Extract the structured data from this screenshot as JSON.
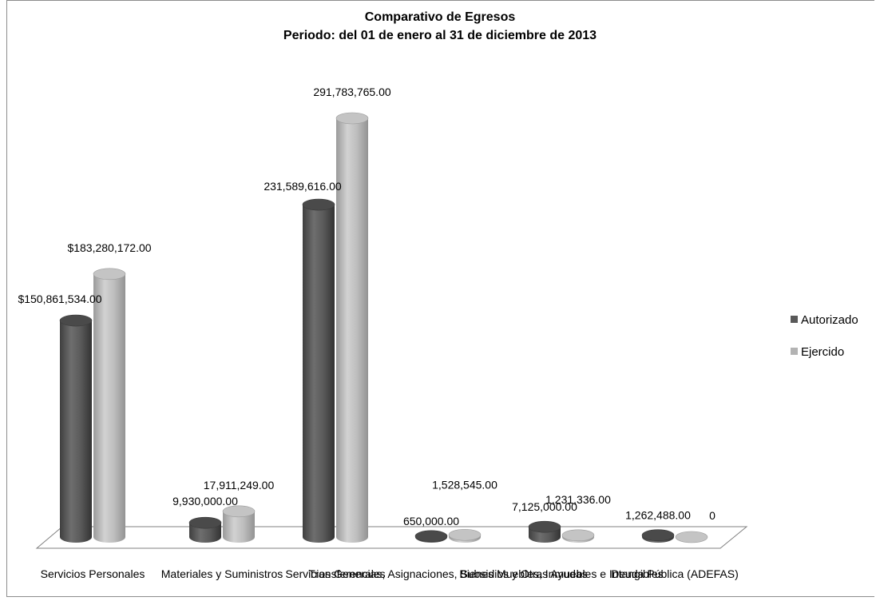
{
  "chart_data": {
    "type": "bar",
    "title": "Comparativo de Egresos",
    "subtitle": "Periodo: del 01 de enero al 31 de diciembre de 2013",
    "categories": [
      "Servicios Personales",
      "Materiales y Suministros",
      "Servicios Generales",
      "Transferencias, Asignaciones, Subsidios y Otras Ayudas",
      "Bienes Muebles, Inmuebles e Intangibles",
      "Deuda Pública (ADEFAS)"
    ],
    "series": [
      {
        "name": "Autorizado",
        "color": "#595959",
        "values": [
          150861534,
          9930000,
          231589616,
          650000,
          7125000,
          1262488
        ],
        "labels": [
          "$150,861,534.00",
          "9,930,000.00",
          "231,589,616.00",
          "650,000.00",
          "7,125,000.00",
          "1,262,488.00"
        ]
      },
      {
        "name": "Ejercido",
        "color": "#b3b3b3",
        "values": [
          183280172,
          17911249,
          291783765,
          1528545,
          1231336,
          0
        ],
        "labels": [
          "$183,280,172.00",
          "17,911,249.00",
          "291,783,765.00",
          "1,528,545.00",
          "1,231,336.00",
          "0"
        ]
      }
    ],
    "legend_position": "right",
    "grid": false,
    "style": "3d-cylinder"
  }
}
